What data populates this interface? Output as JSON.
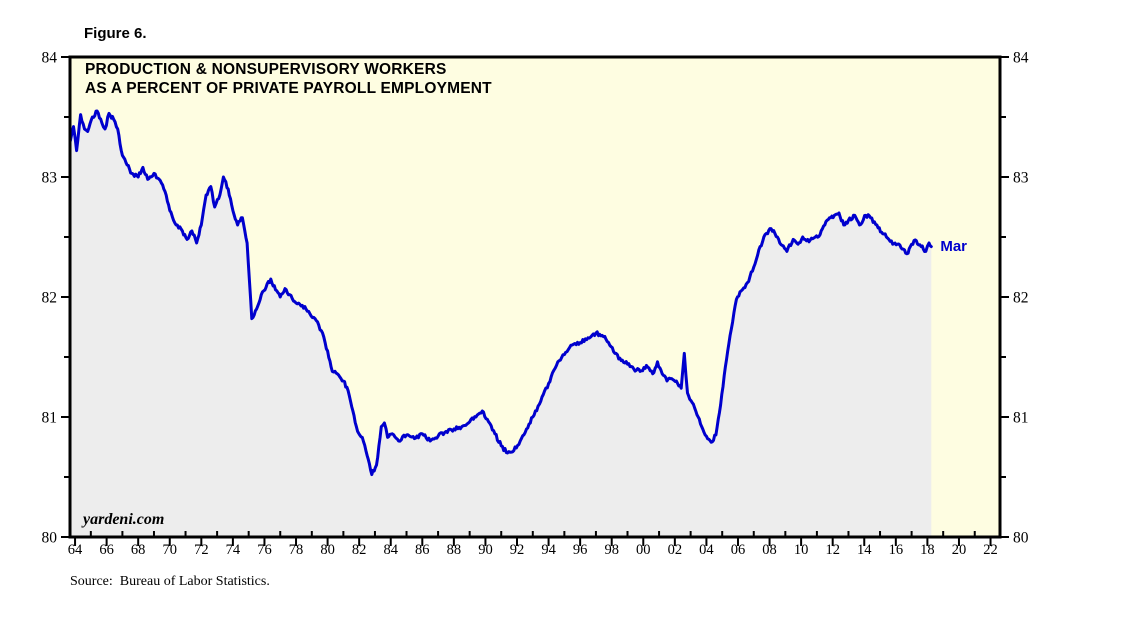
{
  "figure": {
    "label": "Figure 6."
  },
  "chart": {
    "title_line1": "PRODUCTION & NONSUPERVISORY WORKERS",
    "title_line2": "AS A PERCENT OF PRIVATE PAYROLL EMPLOYMENT",
    "watermark": "yardeni.com"
  },
  "footer": {
    "source": "Source:  Bureau of Labor Statistics."
  },
  "colors": {
    "plot_bg": "#FEFDE1",
    "area_fill": "#EDEDED",
    "line": "#0000CD",
    "axis": "#000000",
    "end_label": "#0000CD"
  },
  "chart_data": {
    "type": "area",
    "title": "PRODUCTION & NONSUPERVISORY WORKERS AS A PERCENT OF PRIVATE PAYROLL EMPLOYMENT",
    "ylim": [
      80,
      84
    ],
    "x_range_years": [
      1963.68,
      2022.6
    ],
    "grid": false,
    "annotations": [
      {
        "label": "Mar",
        "year": 2018.25,
        "value": 82.42
      }
    ],
    "y_axis": {
      "range": [
        80,
        84
      ],
      "tick_labels": [
        "84",
        "83",
        "82",
        "81",
        "80"
      ],
      "tick_values": [
        84,
        83,
        82,
        81,
        80
      ],
      "minor_tick_values": [
        83.5,
        82.5,
        81.5,
        80.5
      ]
    },
    "x_axis": {
      "tick_labels": [
        "64",
        "66",
        "68",
        "70",
        "72",
        "74",
        "76",
        "78",
        "80",
        "82",
        "84",
        "86",
        "88",
        "90",
        "92",
        "94",
        "96",
        "98",
        "00",
        "02",
        "04",
        "06",
        "08",
        "10",
        "12",
        "14",
        "16",
        "18",
        "20",
        "22"
      ],
      "tick_years": [
        1964,
        1966,
        1968,
        1970,
        1972,
        1974,
        1976,
        1978,
        1980,
        1982,
        1984,
        1986,
        1988,
        1990,
        1992,
        1994,
        1996,
        1998,
        2000,
        2002,
        2004,
        2006,
        2008,
        2010,
        2012,
        2014,
        2016,
        2018,
        2020,
        2022
      ],
      "minor_tick_years": [
        1965,
        1967,
        1969,
        1971,
        1973,
        1975,
        1977,
        1979,
        1981,
        1983,
        1985,
        1987,
        1989,
        1991,
        1993,
        1995,
        1997,
        1999,
        2001,
        2003,
        2005,
        2007,
        2009,
        2011,
        2013,
        2015,
        2017,
        2019,
        2021
      ]
    },
    "series": [
      {
        "name": "Production & nonsupervisory workers as a percent of private payroll employment",
        "points": [
          [
            1963.7,
            83.3
          ],
          [
            1963.9,
            83.42
          ],
          [
            1964.1,
            83.22
          ],
          [
            1964.35,
            83.52
          ],
          [
            1964.6,
            83.4
          ],
          [
            1964.8,
            83.38
          ],
          [
            1965.1,
            83.5
          ],
          [
            1965.4,
            83.55
          ],
          [
            1965.7,
            83.45
          ],
          [
            1965.9,
            83.4
          ],
          [
            1966.15,
            83.53
          ],
          [
            1966.45,
            83.48
          ],
          [
            1966.7,
            83.4
          ],
          [
            1967.0,
            83.18
          ],
          [
            1967.3,
            83.1
          ],
          [
            1967.6,
            83.03
          ],
          [
            1968.0,
            83.0
          ],
          [
            1968.3,
            83.08
          ],
          [
            1968.6,
            82.98
          ],
          [
            1969.0,
            83.03
          ],
          [
            1969.4,
            82.97
          ],
          [
            1969.7,
            82.88
          ],
          [
            1970.0,
            82.72
          ],
          [
            1970.4,
            82.6
          ],
          [
            1970.8,
            82.55
          ],
          [
            1971.1,
            82.48
          ],
          [
            1971.4,
            82.55
          ],
          [
            1971.7,
            82.45
          ],
          [
            1972.0,
            82.6
          ],
          [
            1972.3,
            82.85
          ],
          [
            1972.6,
            82.92
          ],
          [
            1972.85,
            82.75
          ],
          [
            1973.1,
            82.82
          ],
          [
            1973.4,
            83.0
          ],
          [
            1973.7,
            82.9
          ],
          [
            1974.0,
            82.72
          ],
          [
            1974.3,
            82.6
          ],
          [
            1974.6,
            82.66
          ],
          [
            1974.9,
            82.45
          ],
          [
            1975.2,
            81.82
          ],
          [
            1975.5,
            81.9
          ],
          [
            1975.8,
            82.02
          ],
          [
            1976.1,
            82.08
          ],
          [
            1976.4,
            82.15
          ],
          [
            1976.7,
            82.06
          ],
          [
            1977.0,
            82.0
          ],
          [
            1977.3,
            82.07
          ],
          [
            1977.6,
            82.02
          ],
          [
            1978.0,
            81.95
          ],
          [
            1978.4,
            81.93
          ],
          [
            1978.8,
            81.88
          ],
          [
            1979.2,
            81.82
          ],
          [
            1979.6,
            81.72
          ],
          [
            1980.0,
            81.55
          ],
          [
            1980.3,
            81.38
          ],
          [
            1980.7,
            81.35
          ],
          [
            1981.0,
            81.3
          ],
          [
            1981.3,
            81.22
          ],
          [
            1981.6,
            81.05
          ],
          [
            1981.9,
            80.88
          ],
          [
            1982.2,
            80.83
          ],
          [
            1982.5,
            80.68
          ],
          [
            1982.8,
            80.52
          ],
          [
            1983.1,
            80.6
          ],
          [
            1983.4,
            80.92
          ],
          [
            1983.6,
            80.95
          ],
          [
            1983.8,
            80.83
          ],
          [
            1984.1,
            80.86
          ],
          [
            1984.5,
            80.8
          ],
          [
            1985.0,
            80.85
          ],
          [
            1985.5,
            80.82
          ],
          [
            1986.0,
            80.86
          ],
          [
            1986.5,
            80.8
          ],
          [
            1987.0,
            80.84
          ],
          [
            1987.5,
            80.88
          ],
          [
            1988.0,
            80.9
          ],
          [
            1988.5,
            80.92
          ],
          [
            1989.0,
            80.96
          ],
          [
            1989.4,
            81.0
          ],
          [
            1989.8,
            81.05
          ],
          [
            1990.2,
            80.96
          ],
          [
            1990.6,
            80.86
          ],
          [
            1991.0,
            80.76
          ],
          [
            1991.4,
            80.7
          ],
          [
            1991.8,
            80.72
          ],
          [
            1992.2,
            80.8
          ],
          [
            1992.6,
            80.9
          ],
          [
            1993.0,
            81.0
          ],
          [
            1993.5,
            81.13
          ],
          [
            1994.0,
            81.28
          ],
          [
            1994.5,
            81.43
          ],
          [
            1995.0,
            81.52
          ],
          [
            1995.5,
            81.6
          ],
          [
            1996.0,
            81.62
          ],
          [
            1996.5,
            81.66
          ],
          [
            1997.0,
            81.7
          ],
          [
            1997.4,
            81.68
          ],
          [
            1997.8,
            81.62
          ],
          [
            1998.2,
            81.53
          ],
          [
            1998.6,
            81.47
          ],
          [
            1999.0,
            81.44
          ],
          [
            1999.4,
            81.4
          ],
          [
            1999.8,
            81.38
          ],
          [
            2000.2,
            81.43
          ],
          [
            2000.6,
            81.36
          ],
          [
            2000.9,
            81.46
          ],
          [
            2001.2,
            81.36
          ],
          [
            2001.5,
            81.3
          ],
          [
            2001.8,
            81.32
          ],
          [
            2002.1,
            81.3
          ],
          [
            2002.4,
            81.24
          ],
          [
            2002.6,
            81.53
          ],
          [
            2002.8,
            81.2
          ],
          [
            2003.1,
            81.12
          ],
          [
            2003.4,
            81.02
          ],
          [
            2003.7,
            80.92
          ],
          [
            2004.0,
            80.84
          ],
          [
            2004.3,
            80.79
          ],
          [
            2004.6,
            80.85
          ],
          [
            2004.9,
            81.1
          ],
          [
            2005.2,
            81.42
          ],
          [
            2005.5,
            81.68
          ],
          [
            2005.9,
            81.98
          ],
          [
            2006.2,
            82.05
          ],
          [
            2006.6,
            82.12
          ],
          [
            2007.0,
            82.25
          ],
          [
            2007.4,
            82.42
          ],
          [
            2007.8,
            82.53
          ],
          [
            2008.1,
            82.57
          ],
          [
            2008.5,
            82.5
          ],
          [
            2008.8,
            82.43
          ],
          [
            2009.1,
            82.38
          ],
          [
            2009.5,
            82.48
          ],
          [
            2009.8,
            82.44
          ],
          [
            2010.1,
            82.5
          ],
          [
            2010.5,
            82.46
          ],
          [
            2010.9,
            82.5
          ],
          [
            2011.2,
            82.52
          ],
          [
            2011.5,
            82.6
          ],
          [
            2011.8,
            82.66
          ],
          [
            2012.1,
            82.68
          ],
          [
            2012.4,
            82.7
          ],
          [
            2012.7,
            82.6
          ],
          [
            2013.0,
            82.64
          ],
          [
            2013.4,
            82.68
          ],
          [
            2013.7,
            82.6
          ],
          [
            2014.1,
            82.68
          ],
          [
            2014.4,
            82.66
          ],
          [
            2014.8,
            82.6
          ],
          [
            2015.1,
            82.54
          ],
          [
            2015.4,
            82.5
          ],
          [
            2015.8,
            82.44
          ],
          [
            2016.1,
            82.44
          ],
          [
            2016.4,
            82.4
          ],
          [
            2016.7,
            82.36
          ],
          [
            2017.0,
            82.44
          ],
          [
            2017.3,
            82.47
          ],
          [
            2017.6,
            82.42
          ],
          [
            2017.9,
            82.38
          ],
          [
            2018.1,
            82.45
          ],
          [
            2018.25,
            82.42
          ]
        ]
      }
    ]
  }
}
